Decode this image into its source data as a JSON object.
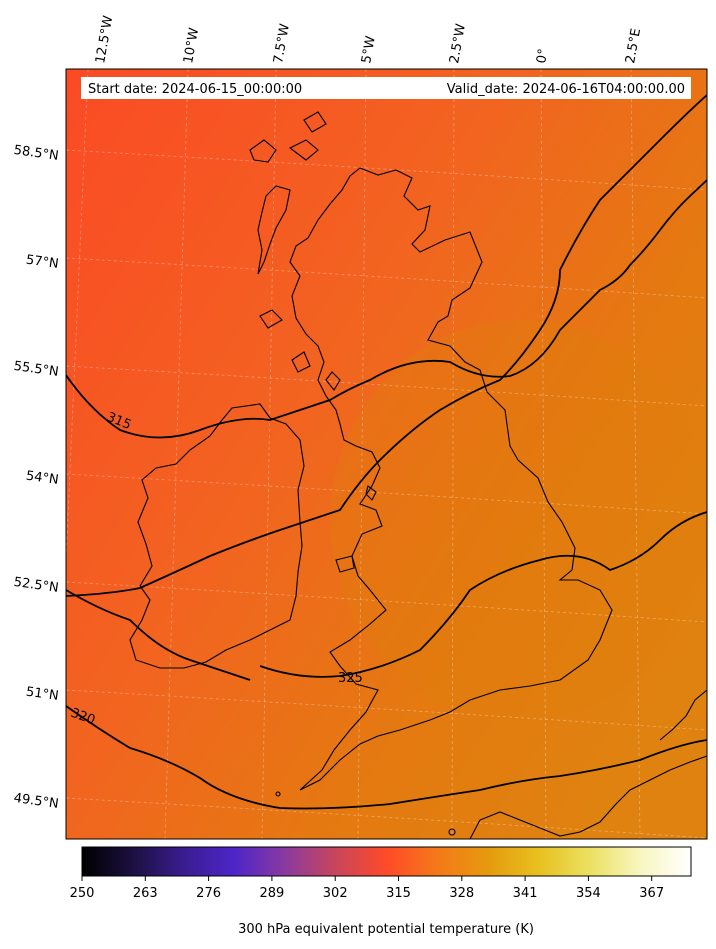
{
  "header": {
    "start_label": "Start date: 2024-06-15_00:00:00",
    "valid_label": "Valid_date: 2024-06-16T04:00:00.00"
  },
  "longitude_ticks": [
    "12.5°W",
    "10°W",
    "7.5°W",
    "5°W",
    "2.5°W",
    "0°",
    "2.5°E"
  ],
  "latitude_ticks": [
    "58.5°N",
    "57°N",
    "55.5°N",
    "54°N",
    "52.5°N",
    "51°N",
    "49.5°N"
  ],
  "contour_labels": [
    "315",
    "320",
    "325"
  ],
  "colorbar": {
    "title": "300 hPa equivalent potential temperature (K)",
    "ticks": [
      "250",
      "263",
      "276",
      "289",
      "302",
      "315",
      "328",
      "341",
      "354",
      "367"
    ],
    "colors": [
      "#000000",
      "#1c1040",
      "#3a1d90",
      "#4d25c8",
      "#8a3aa0",
      "#c8465a",
      "#ff4a28",
      "#f5781a",
      "#e69a0e",
      "#e8c020",
      "#ece060",
      "#f8f6c0",
      "#ffffff"
    ]
  },
  "map_colors": {
    "northwest": "#fb4a25",
    "middle": "#f26420",
    "southeast": "#e47a10",
    "east": "#df8210"
  }
}
